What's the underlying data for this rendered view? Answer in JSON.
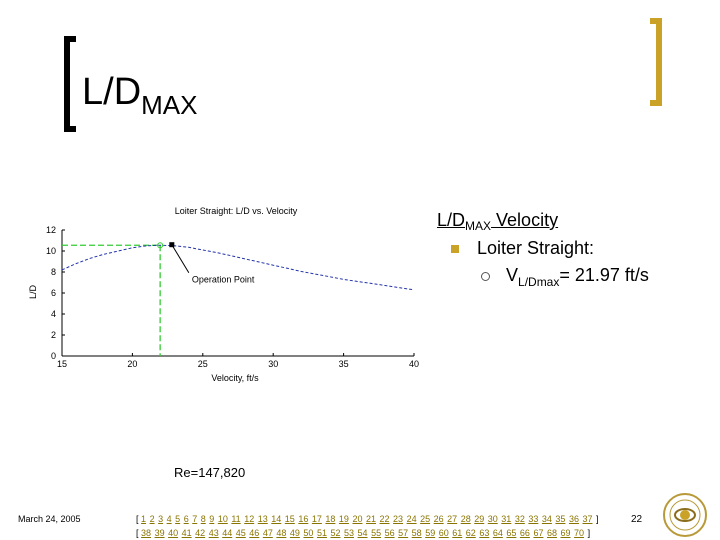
{
  "slide": {
    "title_main": "L/D",
    "title_sub": "MAX",
    "re_note": "Re=147,820",
    "date": "March 24, 2005",
    "page_number": "22"
  },
  "bullets": {
    "heading_main": "L/D",
    "heading_sub": "MAX",
    "heading_rest": " Velocity",
    "item1": "Loiter Straight:",
    "item2_main": "V",
    "item2_sub": "L/Dmax",
    "item2_rest": "= 21.97 ft/s"
  },
  "nav": {
    "open": "[",
    "close": "]",
    "row1": [
      "1",
      "2",
      "3",
      "4",
      "5",
      "6",
      "7",
      "8",
      "9",
      "10",
      "11",
      "12",
      "13",
      "14",
      "15",
      "16",
      "17",
      "18",
      "19",
      "20",
      "21",
      "22",
      "23",
      "24",
      "25",
      "26",
      "27",
      "28",
      "29",
      "30",
      "31",
      "32",
      "33",
      "34",
      "35",
      "36",
      "37"
    ],
    "row2": [
      "38",
      "39",
      "40",
      "41",
      "42",
      "43",
      "44",
      "45",
      "46",
      "47",
      "48",
      "49",
      "50",
      "51",
      "52",
      "53",
      "54",
      "55",
      "56",
      "57",
      "58",
      "59",
      "60",
      "61",
      "62",
      "63",
      "64",
      "65",
      "66",
      "67",
      "68",
      "69",
      "70"
    ]
  },
  "chart_data": {
    "type": "line",
    "title": "Loiter Straight: L/D vs. Velocity",
    "xlabel": "Velocity, ft/s",
    "ylabel": "L/D",
    "xlim": [
      15,
      40
    ],
    "ylim": [
      0,
      12
    ],
    "xticks": [
      "15",
      "20",
      "25",
      "30",
      "35",
      "40"
    ],
    "yticks": [
      "0",
      "2",
      "4",
      "6",
      "8",
      "10",
      "12"
    ],
    "grid": false,
    "annotation": "Operation Point",
    "series": [
      {
        "style": "dashed",
        "color": "#2233aa",
        "x": [
          15,
          16,
          17,
          18,
          19,
          20,
          21,
          22,
          23,
          24,
          25,
          26,
          27,
          28,
          29,
          30,
          31,
          32,
          33,
          34,
          35,
          36,
          37,
          38,
          39,
          40
        ],
        "y": [
          8.2,
          8.8,
          9.3,
          9.7,
          10.0,
          10.3,
          10.5,
          10.55,
          10.5,
          10.35,
          10.1,
          9.85,
          9.55,
          9.25,
          8.95,
          8.65,
          8.35,
          8.05,
          7.8,
          7.55,
          7.3,
          7.1,
          6.9,
          6.7,
          6.5,
          6.3
        ]
      }
    ],
    "max_point": {
      "x": 21.97,
      "y": 10.55
    },
    "operation_point": {
      "x": 22.8,
      "y": 10.6
    },
    "reference_color": "#33cc33"
  }
}
